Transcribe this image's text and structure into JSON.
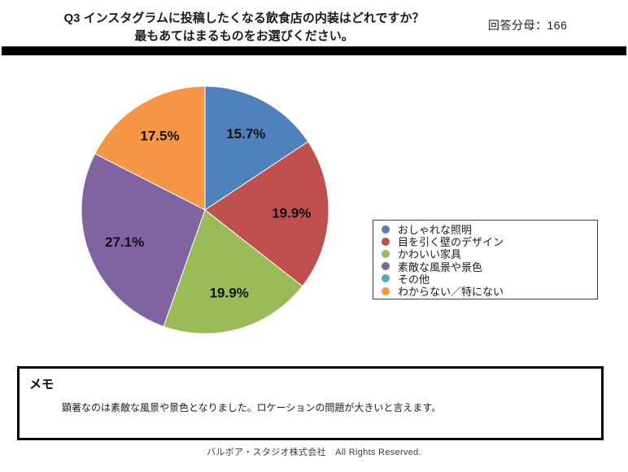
{
  "header": {
    "title_line1": "Q3 インスタグラムに投稿したくなる飲食店の内装はどれですか？",
    "title_line2": "最もあてはまるものをお選びください。",
    "denominator_label": "回答分母：",
    "denominator_value": "166"
  },
  "chart_data": {
    "type": "pie",
    "title": "",
    "start_angle_deg": 0,
    "direction": "clockwise",
    "categories": [
      "おしゃれな照明",
      "目を引く壁のデザイン",
      "かわいい家具",
      "素敵な風景や景色",
      "その他",
      "わからない／特にない"
    ],
    "values": [
      15.7,
      19.9,
      19.9,
      27.1,
      0,
      17.5
    ],
    "labels": [
      "15.7%",
      "19.9%",
      "19.9%",
      "27.1%",
      "",
      "17.5%"
    ],
    "colors": [
      "#4F81BD",
      "#C0504D",
      "#9BBB59",
      "#8064A2",
      "#4BACC6",
      "#F79646"
    ],
    "legend_position": "right",
    "slice_border_color": "#ffffff"
  },
  "memo": {
    "heading": "メモ",
    "body": "顕著なのは素敵な風景や景色となりました。ロケーションの問題が大きいと言えます。"
  },
  "footer": {
    "copyright": "バルボア・スタジオ株式会社　All Rights Reserved."
  }
}
